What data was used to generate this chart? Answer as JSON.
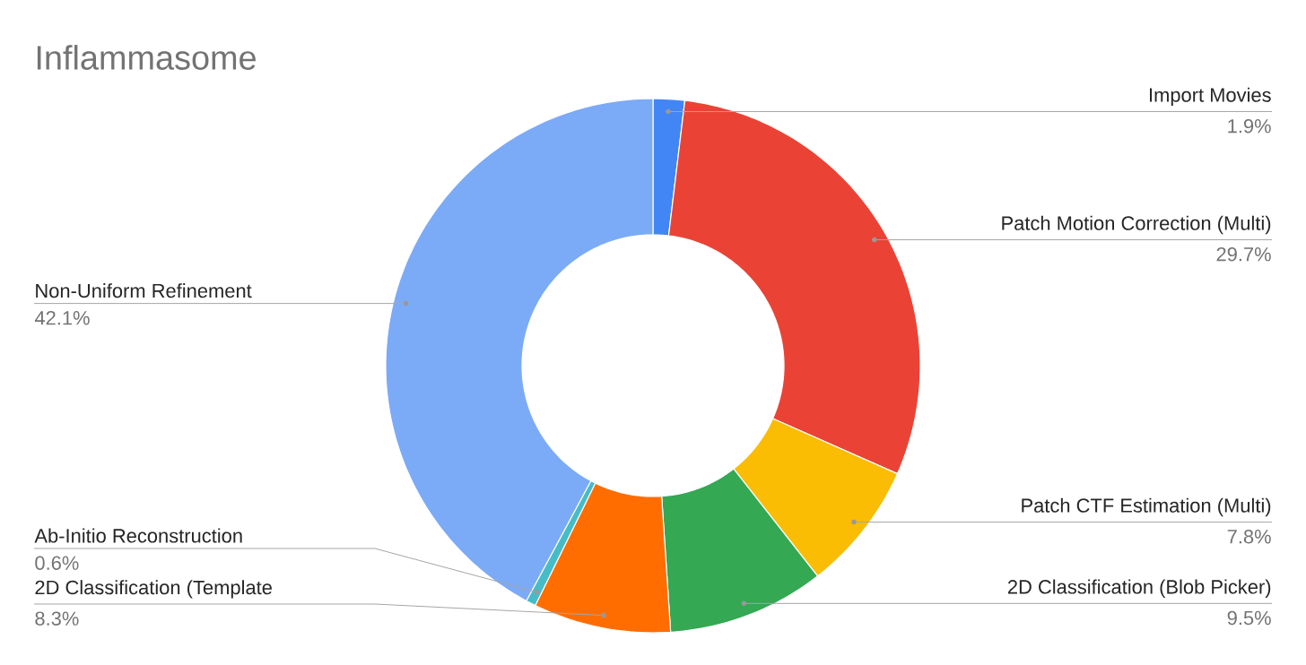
{
  "chart_data": {
    "type": "donut",
    "title": "Inflammasome",
    "categories": [
      "Import Movies",
      "Patch Motion Correction (Multi)",
      "Patch CTF Estimation (Multi)",
      "2D Classification (Blob Picker)",
      "2D Classification (Template",
      "Ab-Initio Reconstruction",
      "Non-Uniform Refinement"
    ],
    "values": [
      1.9,
      29.7,
      7.8,
      9.5,
      8.3,
      0.6,
      42.1
    ],
    "colors": [
      "#4285f4",
      "#ea4335",
      "#fbbc04",
      "#34a853",
      "#ff6d01",
      "#46bdc6",
      "#7baaf7"
    ],
    "value_labels": [
      "1.9%",
      "29.7%",
      "7.8%",
      "9.5%",
      "8.3%",
      "0.6%",
      "42.1%"
    ]
  }
}
